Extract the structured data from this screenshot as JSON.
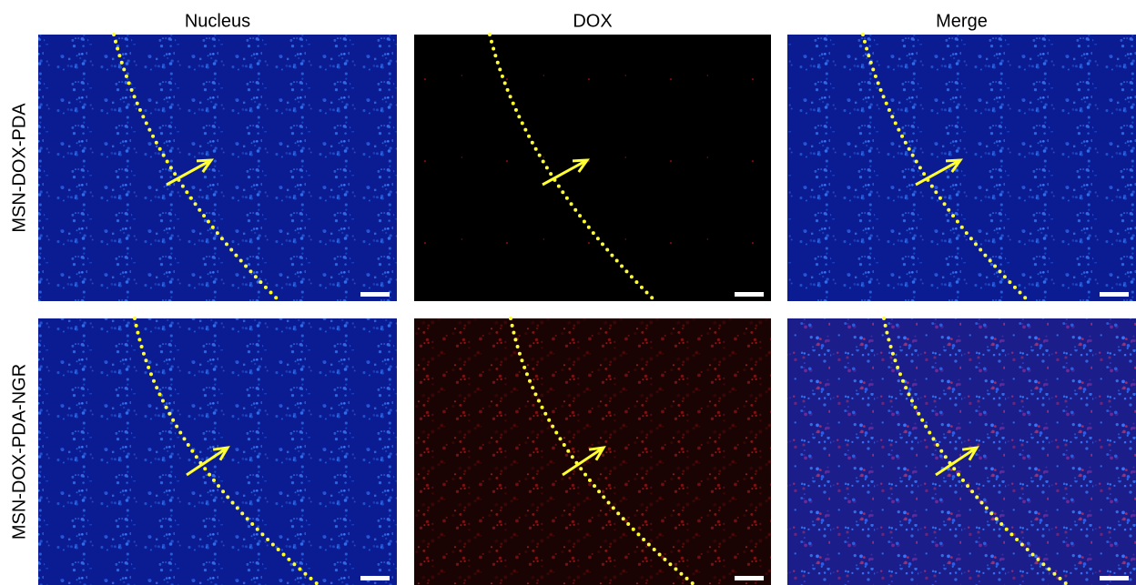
{
  "columns": [
    "Nucleus",
    "DOX",
    "Merge"
  ],
  "rows": [
    "MSN-DOX-PDA",
    "MSN-DOX-PDA-NGR"
  ]
}
